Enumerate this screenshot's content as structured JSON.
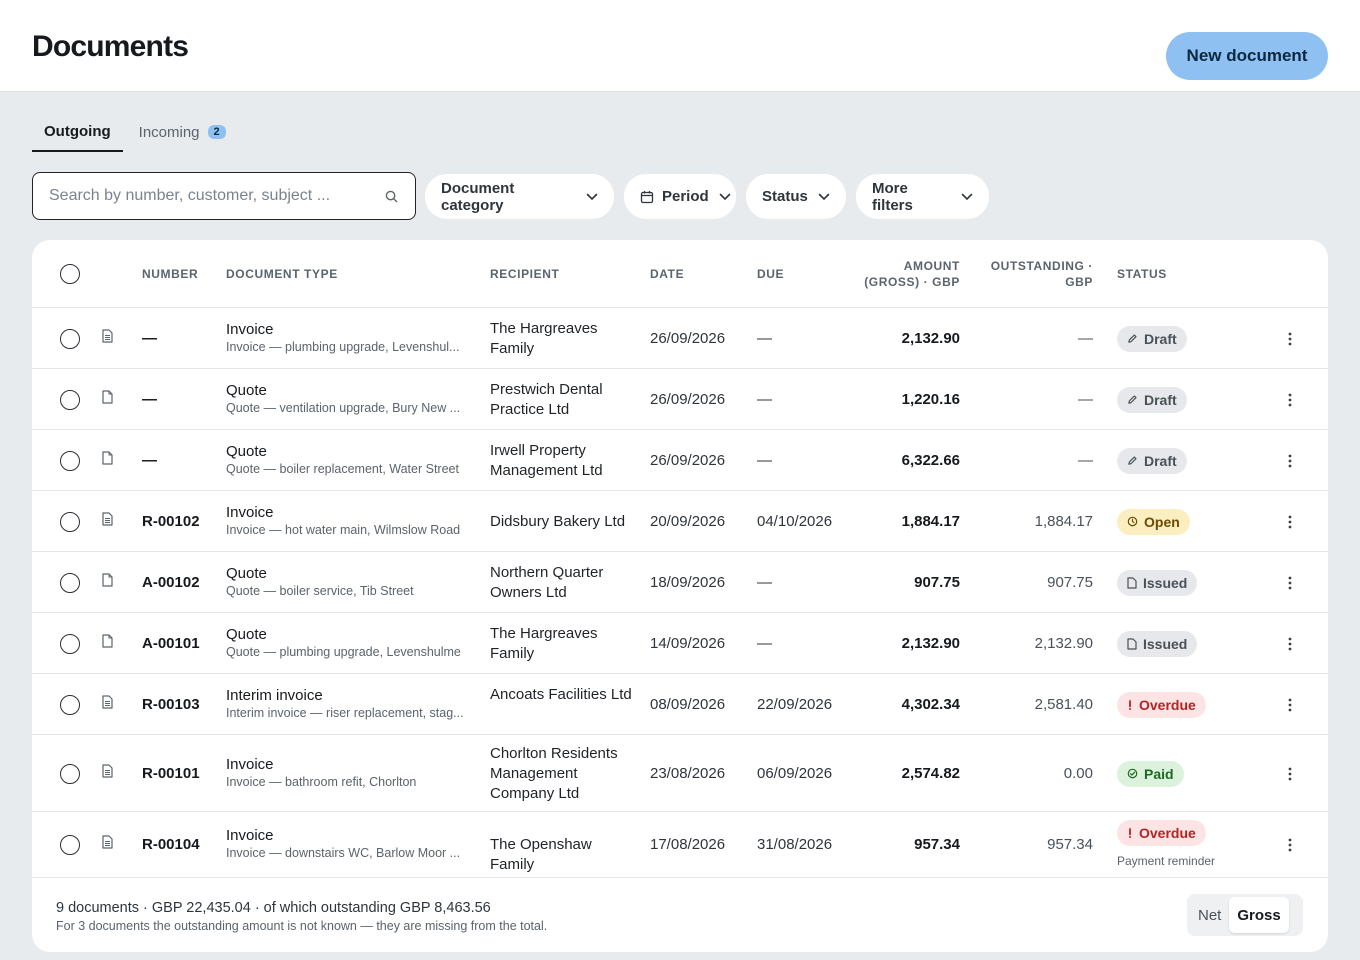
{
  "header": {
    "title": "Documents",
    "new_button": "New document"
  },
  "tabs": [
    {
      "label": "Outgoing",
      "active": true
    },
    {
      "label": "Incoming",
      "badge": "2"
    }
  ],
  "search": {
    "placeholder": "Search by number, customer, subject ..."
  },
  "filters": {
    "category": "Document category",
    "period": "Period",
    "status": "Status",
    "more": "More filters"
  },
  "columns": {
    "number": "Number",
    "doc_type": "Document type",
    "recipient": "Recipient",
    "date": "Date",
    "due": "Due",
    "amount_1": "Amount",
    "amount_2": "(gross) · GBP",
    "outstanding_1": "Outstanding ·",
    "outstanding_2": "GBP",
    "status": "Status"
  },
  "rows": [
    {
      "number": "—",
      "type": "Invoice",
      "subject": "Invoice — plumbing upgrade, Levenshul...",
      "recipient": "The Hargreaves Family",
      "date": "26/09/2026",
      "due": "—",
      "amount": "2,132.90",
      "outstanding": "—",
      "status": "Draft",
      "status_kind": "draft",
      "icon": "invoice-doc-icon"
    },
    {
      "number": "—",
      "type": "Quote",
      "subject": "Quote — ventilation upgrade, Bury New ...",
      "recipient": "Prestwich Dental Practice Ltd",
      "date": "26/09/2026",
      "due": "—",
      "amount": "1,220.16",
      "outstanding": "—",
      "status": "Draft",
      "status_kind": "draft",
      "icon": "quote-doc-icon"
    },
    {
      "number": "—",
      "type": "Quote",
      "subject": "Quote — boiler replacement, Water Street",
      "recipient": "Irwell Property Management Ltd",
      "date": "26/09/2026",
      "due": "—",
      "amount": "6,322.66",
      "outstanding": "—",
      "status": "Draft",
      "status_kind": "draft",
      "icon": "quote-doc-icon"
    },
    {
      "number": "R-00102",
      "type": "Invoice",
      "subject": "Invoice — hot water main, Wilmslow Road",
      "recipient": "Didsbury Bakery Ltd",
      "date": "20/09/2026",
      "due": "04/10/2026",
      "amount": "1,884.17",
      "outstanding": "1,884.17",
      "status": "Open",
      "status_kind": "open",
      "icon": "invoice-doc-icon"
    },
    {
      "number": "A-00102",
      "type": "Quote",
      "subject": "Quote — boiler service, Tib Street",
      "recipient": "Northern Quarter Owners Ltd",
      "date": "18/09/2026",
      "due": "—",
      "amount": "907.75",
      "outstanding": "907.75",
      "status": "Issued",
      "status_kind": "issued",
      "icon": "quote-doc-icon"
    },
    {
      "number": "A-00101",
      "type": "Quote",
      "subject": "Quote — plumbing upgrade, Levenshulme",
      "recipient": "The Hargreaves Family",
      "date": "14/09/2026",
      "due": "—",
      "amount": "2,132.90",
      "outstanding": "2,132.90",
      "status": "Issued",
      "status_kind": "issued",
      "icon": "quote-doc-icon"
    },
    {
      "number": "R-00103",
      "type": "Interim invoice",
      "subject": "Interim invoice — riser replacement, stag...",
      "recipient": "Ancoats Facilities Ltd",
      "date": "08/09/2026",
      "due": "22/09/2026",
      "amount": "4,302.34",
      "outstanding": "2,581.40",
      "status": "Overdue",
      "status_kind": "overdue",
      "icon": "invoice-doc-icon"
    },
    {
      "number": "R-00101",
      "type": "Invoice",
      "subject": "Invoice — bathroom refit, Chorlton",
      "recipient": "Chorlton Residents Management Company Ltd",
      "date": "23/08/2026",
      "due": "06/09/2026",
      "amount": "2,574.82",
      "outstanding": "0.00",
      "status": "Paid",
      "status_kind": "paid",
      "icon": "invoice-doc-icon"
    },
    {
      "number": "R-00104",
      "type": "Invoice",
      "subject": "Invoice — downstairs WC, Barlow Moor ...",
      "recipient": "The Openshaw Family",
      "date": "17/08/2026",
      "due": "31/08/2026",
      "amount": "957.34",
      "outstanding": "957.34",
      "status": "Overdue",
      "status_kind": "overdue",
      "note": "Payment reminder",
      "icon": "invoice-doc-icon"
    }
  ],
  "footer": {
    "summary": "9 documents · GBP 22,435.04 · of which outstanding GBP 8,463.56",
    "note": "For 3 documents the outstanding amount is not known — they are missing from the total.",
    "toggle_net": "Net",
    "toggle_gross": "Gross"
  }
}
